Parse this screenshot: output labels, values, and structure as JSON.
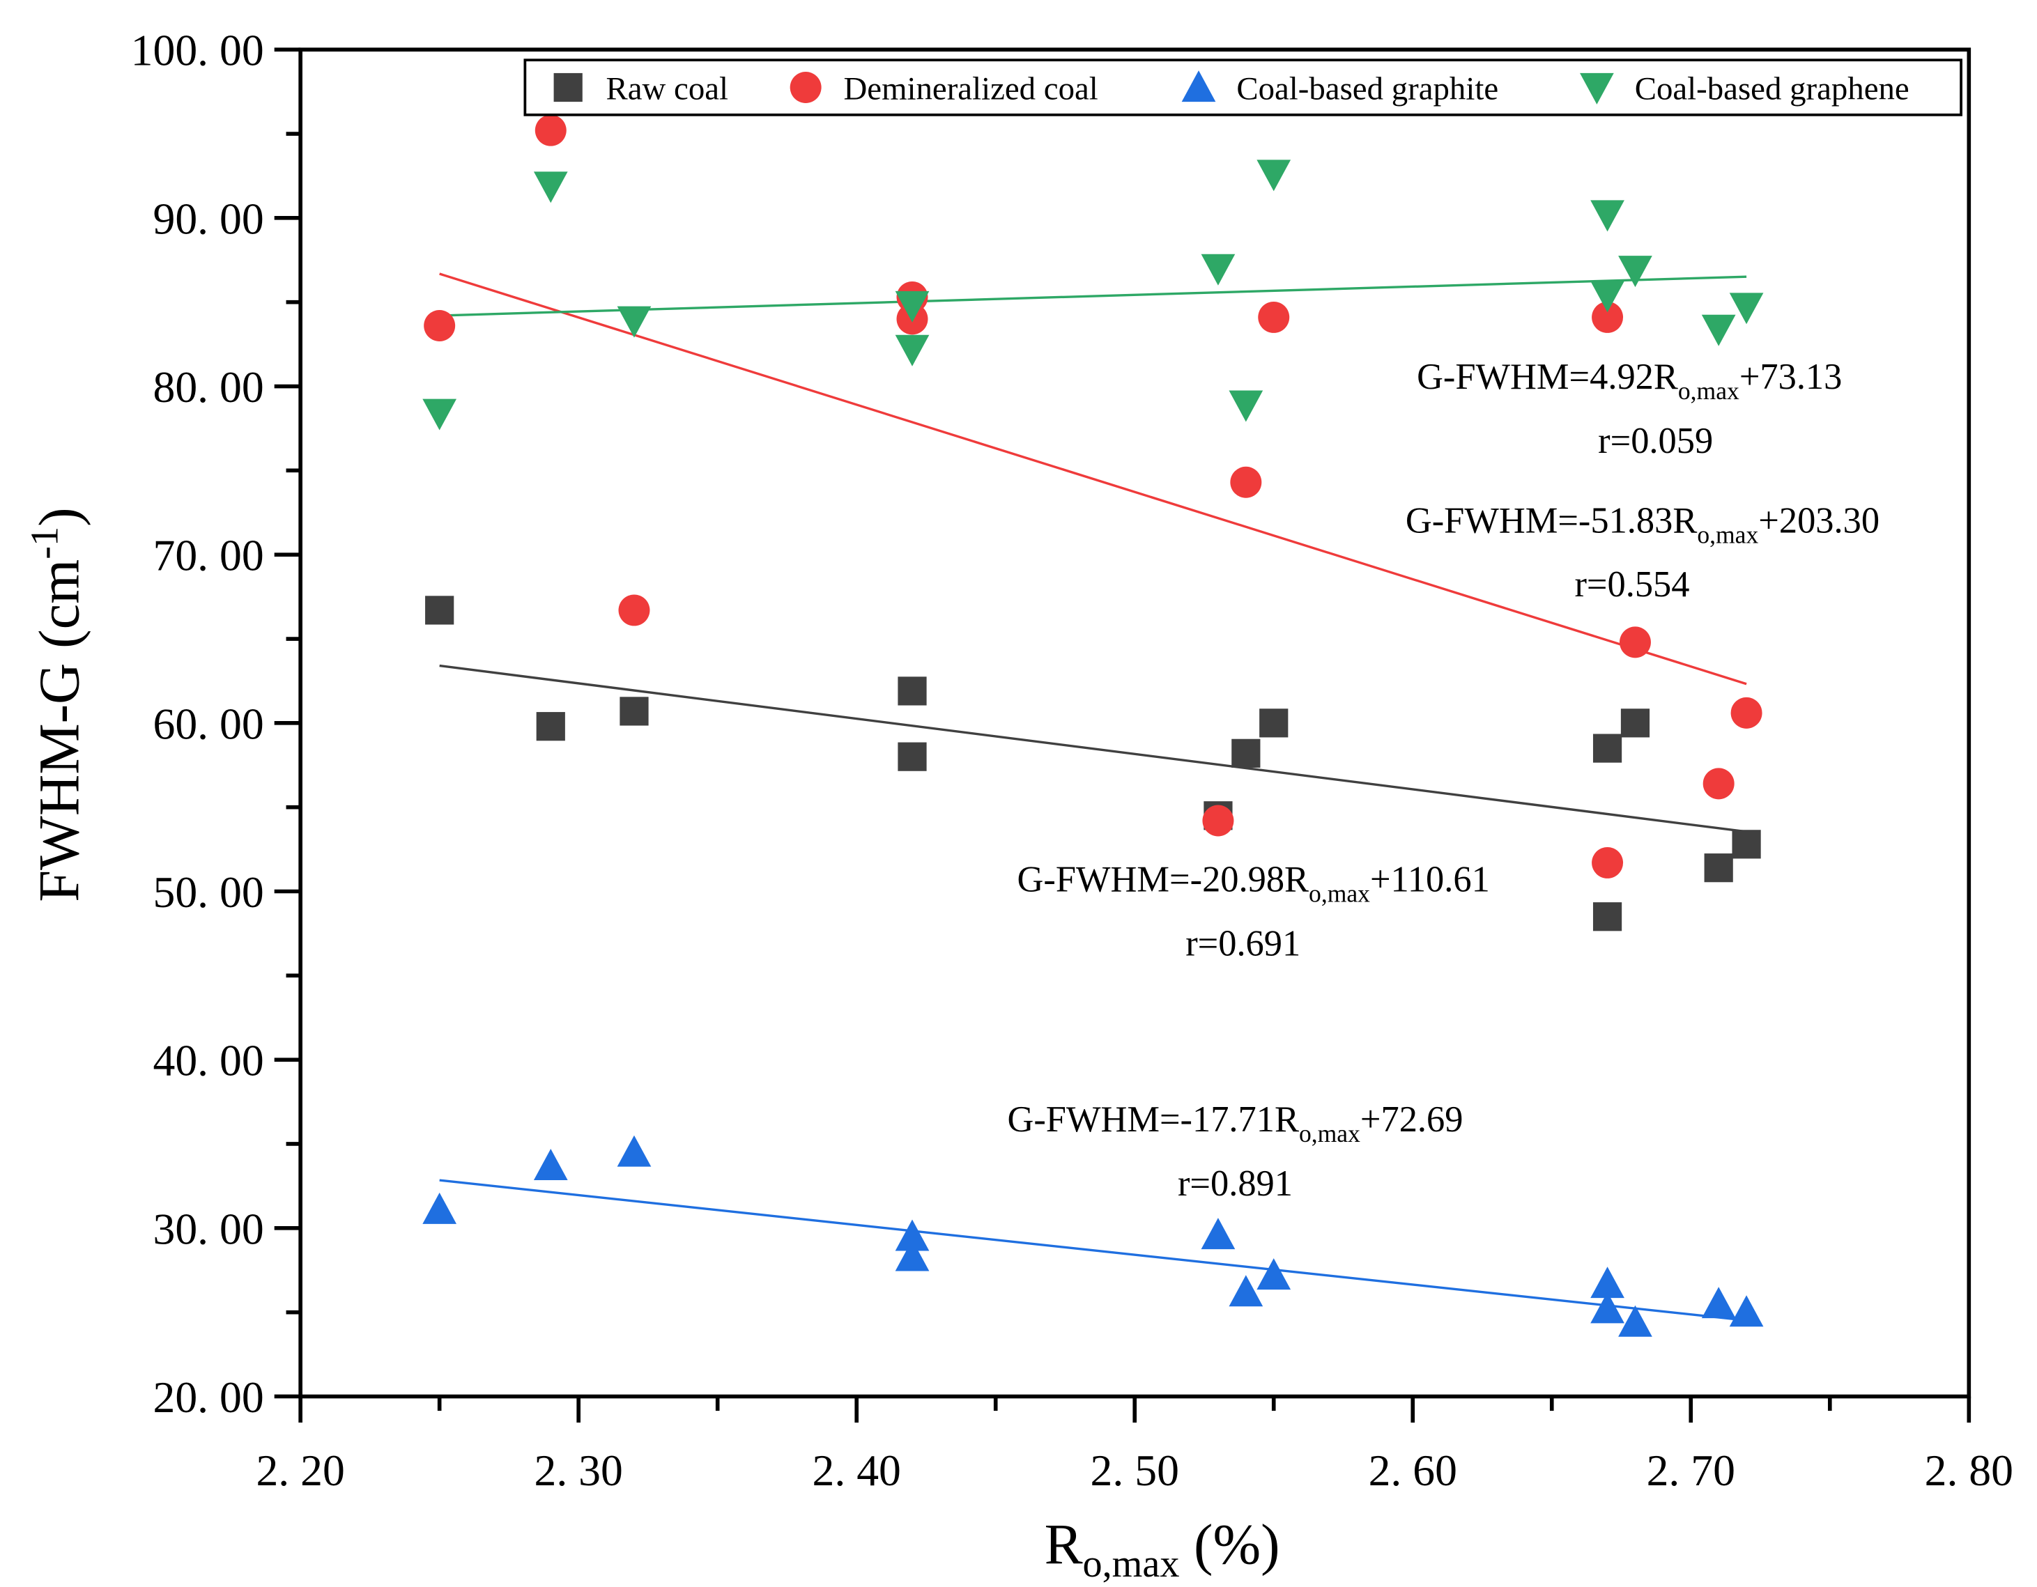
{
  "chart_data": {
    "type": "scatter",
    "xlabel": {
      "main": "R",
      "sub": "o,max",
      "tail": " (%)"
    },
    "ylabel": {
      "main": "FWHM-G (cm",
      "sup": "-1",
      "tail": ")"
    },
    "xlim": [
      2.2,
      2.8
    ],
    "ylim": [
      20,
      100
    ],
    "xticks": [
      2.2,
      2.3,
      2.4,
      2.5,
      2.6,
      2.7,
      2.8
    ],
    "xtick_labels": [
      "2. 20",
      "2. 30",
      "2. 40",
      "2. 50",
      "2. 60",
      "2. 70",
      "2. 80"
    ],
    "yticks": [
      20,
      30,
      40,
      50,
      60,
      70,
      80,
      90,
      100
    ],
    "ytick_labels": [
      "20. 00",
      "30. 00",
      "40. 00",
      "50. 00",
      "60. 00",
      "70. 00",
      "80. 00",
      "90. 00",
      "100. 00"
    ],
    "legend_position": "top-right",
    "x": [
      2.25,
      2.29,
      2.32,
      2.42,
      2.42,
      2.53,
      2.54,
      2.55,
      2.67,
      2.67,
      2.68,
      2.71,
      2.72
    ],
    "series": [
      {
        "name": "Raw coal",
        "marker": "square",
        "color": "#404040",
        "values": [
          66.7,
          59.8,
          60.7,
          61.9,
          58.0,
          54.5,
          58.2,
          60.0,
          58.5,
          48.5,
          60.0,
          51.4,
          52.8
        ],
        "fit": {
          "slope": -20.98,
          "intercept": 110.61
        },
        "annotation": {
          "pre": "G-FWHM=-20.98R",
          "sub": "o,max",
          "post": "+110.61",
          "r": "r=0.691"
        }
      },
      {
        "name": "Demineralized coal",
        "marker": "circle",
        "color": "#ef3b3b",
        "values": [
          83.6,
          95.2,
          66.7,
          85.3,
          84.0,
          54.2,
          74.3,
          84.1,
          84.1,
          51.7,
          64.8,
          56.4,
          60.6
        ],
        "fit": {
          "slope": -51.83,
          "intercept": 203.3
        },
        "annotation": {
          "pre": "G-FWHM=-51.83R",
          "sub": "o,max",
          "post": "+203.30",
          "r": "r=0.554"
        }
      },
      {
        "name": "Coal-based graphite",
        "marker": "triangle-up",
        "color": "#1f6fe0",
        "values": [
          31.1,
          33.7,
          34.5,
          29.5,
          28.3,
          29.6,
          26.2,
          27.2,
          26.7,
          25.2,
          24.4,
          25.5,
          25.0
        ],
        "fit": {
          "slope": -17.71,
          "intercept": 72.69
        },
        "annotation": {
          "pre": "G-FWHM=-17.71R",
          "sub": "o,max",
          "post": "+72.69",
          "r": "r=0.891"
        }
      },
      {
        "name": "Coal-based graphene",
        "marker": "triangle-down",
        "color": "#2ea866",
        "values": [
          78.4,
          91.9,
          83.9,
          84.8,
          82.2,
          87.0,
          78.9,
          92.6,
          90.2,
          85.4,
          86.9,
          83.4,
          84.7
        ],
        "fit": {
          "slope": 4.92,
          "intercept": 73.13
        },
        "annotation": {
          "pre": "G-FWHM=4.92R",
          "sub": "o,max",
          "post": "+73.13",
          "r": "r=0.059"
        }
      }
    ]
  }
}
